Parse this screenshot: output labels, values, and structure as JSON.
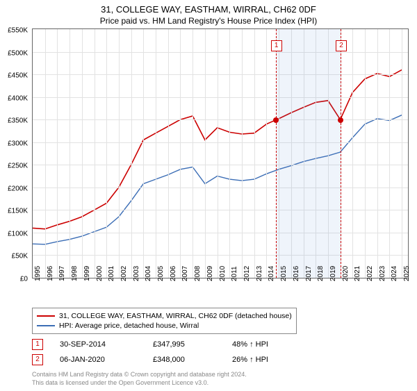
{
  "title": "31, COLLEGE WAY, EASTHAM, WIRRAL, CH62 0DF",
  "subtitle": "Price paid vs. HM Land Registry's House Price Index (HPI)",
  "chart": {
    "type": "line",
    "x_years": [
      1995,
      1996,
      1997,
      1998,
      1999,
      2000,
      2001,
      2002,
      2003,
      2004,
      2005,
      2006,
      2007,
      2008,
      2009,
      2010,
      2011,
      2012,
      2013,
      2014,
      2015,
      2016,
      2017,
      2018,
      2019,
      2020,
      2021,
      2022,
      2023,
      2024,
      2025
    ],
    "xlim": [
      1995,
      2025.5
    ],
    "ylim": [
      0,
      550000
    ],
    "ytick_step": 50000,
    "y_labels": [
      "£0",
      "£50K",
      "£100K",
      "£150K",
      "£200K",
      "£250K",
      "£300K",
      "£350K",
      "£400K",
      "£450K",
      "£500K",
      "£550K"
    ],
    "background_color": "#ffffff",
    "grid_color": "#e2e2e2",
    "border_color": "#666666",
    "tick_fontsize": 10,
    "title_fontsize": 13,
    "subtitle_fontsize": 12,
    "series": [
      {
        "name": "property",
        "label": "31, COLLEGE WAY, EASTHAM, WIRRAL, CH62 0DF (detached house)",
        "color": "#cc0000",
        "line_width": 1.6,
        "points": [
          [
            1995,
            110000
          ],
          [
            1996,
            108000
          ],
          [
            1997,
            117000
          ],
          [
            1998,
            125000
          ],
          [
            1999,
            135000
          ],
          [
            2000,
            150000
          ],
          [
            2001,
            165000
          ],
          [
            2002,
            200000
          ],
          [
            2003,
            250000
          ],
          [
            2004,
            305000
          ],
          [
            2005,
            320000
          ],
          [
            2006,
            335000
          ],
          [
            2007,
            350000
          ],
          [
            2008,
            358000
          ],
          [
            2009,
            305000
          ],
          [
            2010,
            332000
          ],
          [
            2011,
            322000
          ],
          [
            2012,
            318000
          ],
          [
            2013,
            320000
          ],
          [
            2014,
            340000
          ],
          [
            2015,
            352000
          ],
          [
            2016,
            365000
          ],
          [
            2017,
            377000
          ],
          [
            2018,
            388000
          ],
          [
            2019,
            392000
          ],
          [
            2020,
            350000
          ],
          [
            2021,
            410000
          ],
          [
            2022,
            440000
          ],
          [
            2023,
            452000
          ],
          [
            2024,
            445000
          ],
          [
            2025,
            460000
          ]
        ]
      },
      {
        "name": "hpi",
        "label": "HPI: Average price, detached house, Wirral",
        "color": "#3b6db5",
        "line_width": 1.4,
        "points": [
          [
            1995,
            75000
          ],
          [
            1996,
            74000
          ],
          [
            1997,
            80000
          ],
          [
            1998,
            85000
          ],
          [
            1999,
            92000
          ],
          [
            2000,
            102000
          ],
          [
            2001,
            112000
          ],
          [
            2002,
            135000
          ],
          [
            2003,
            170000
          ],
          [
            2004,
            208000
          ],
          [
            2005,
            218000
          ],
          [
            2006,
            228000
          ],
          [
            2007,
            240000
          ],
          [
            2008,
            245000
          ],
          [
            2009,
            208000
          ],
          [
            2010,
            225000
          ],
          [
            2011,
            218000
          ],
          [
            2012,
            215000
          ],
          [
            2013,
            218000
          ],
          [
            2014,
            230000
          ],
          [
            2015,
            240000
          ],
          [
            2016,
            248000
          ],
          [
            2017,
            257000
          ],
          [
            2018,
            264000
          ],
          [
            2019,
            270000
          ],
          [
            2020,
            278000
          ],
          [
            2021,
            310000
          ],
          [
            2022,
            340000
          ],
          [
            2023,
            352000
          ],
          [
            2024,
            348000
          ],
          [
            2025,
            360000
          ]
        ]
      }
    ],
    "shaded_span": [
      2014.75,
      2020.02
    ],
    "shade_color": "rgba(100,150,220,0.10)",
    "sale_markers": [
      {
        "n": "1",
        "x": 2014.75,
        "y": 347995
      },
      {
        "n": "2",
        "x": 2020.02,
        "y": 348000
      }
    ],
    "marker_line_color": "#cc0000",
    "marker_box_border": "#cc0000"
  },
  "legend": {
    "border_color": "#888888",
    "fontsize": 10.5
  },
  "sales": [
    {
      "n": "1",
      "date": "30-SEP-2014",
      "price": "£347,995",
      "diff": "48% ↑ HPI"
    },
    {
      "n": "2",
      "date": "06-JAN-2020",
      "price": "£348,000",
      "diff": "26% ↑ HPI"
    }
  ],
  "footnote_line1": "Contains HM Land Registry data © Crown copyright and database right 2024.",
  "footnote_line2": "This data is licensed under the Open Government Licence v3.0."
}
